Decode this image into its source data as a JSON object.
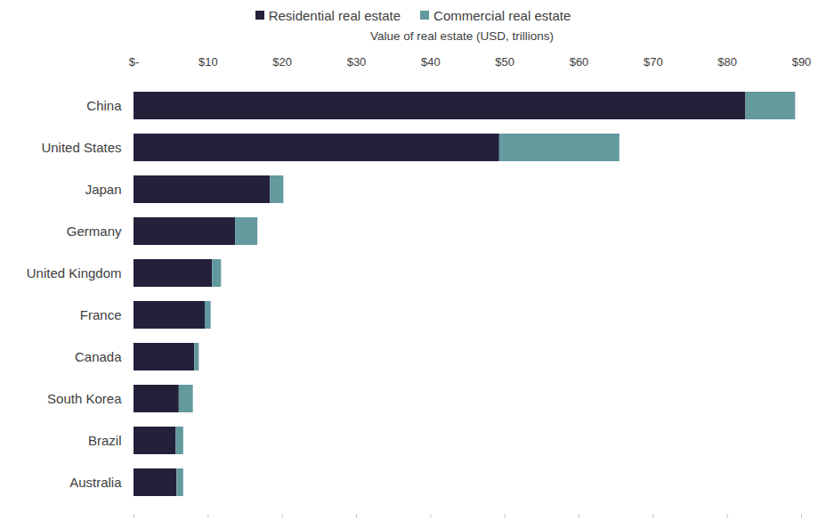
{
  "chart_data": {
    "type": "bar",
    "orientation": "horizontal",
    "stacked": true,
    "legend": "top",
    "grid": false,
    "xlabel": "Value of real estate (USD, trillions)",
    "categories": [
      "China",
      "United States",
      "Japan",
      "Germany",
      "United Kingdom",
      "France",
      "Canada",
      "South Korea",
      "Brazil",
      "Australia"
    ],
    "series": [
      {
        "name": "Residential real estate",
        "color": "#23213a",
        "values": [
          82.5,
          49.3,
          18.4,
          13.7,
          10.6,
          9.6,
          8.2,
          6.1,
          5.7,
          5.8
        ]
      },
      {
        "name": "Commercial real estate",
        "color": "#639a9e",
        "values": [
          6.7,
          16.2,
          1.8,
          3.0,
          1.2,
          0.8,
          0.6,
          1.9,
          1.0,
          0.9
        ]
      }
    ],
    "xlim": [
      0,
      90
    ],
    "xticks": [
      {
        "value": 0,
        "label": "$-"
      },
      {
        "value": 10,
        "label": "$10"
      },
      {
        "value": 20,
        "label": "$20"
      },
      {
        "value": 30,
        "label": "$30"
      },
      {
        "value": 40,
        "label": "$40"
      },
      {
        "value": 50,
        "label": "$50"
      },
      {
        "value": 60,
        "label": "$60"
      },
      {
        "value": 70,
        "label": "$70"
      },
      {
        "value": 80,
        "label": "$80"
      },
      {
        "value": 90,
        "label": "$90"
      }
    ]
  }
}
